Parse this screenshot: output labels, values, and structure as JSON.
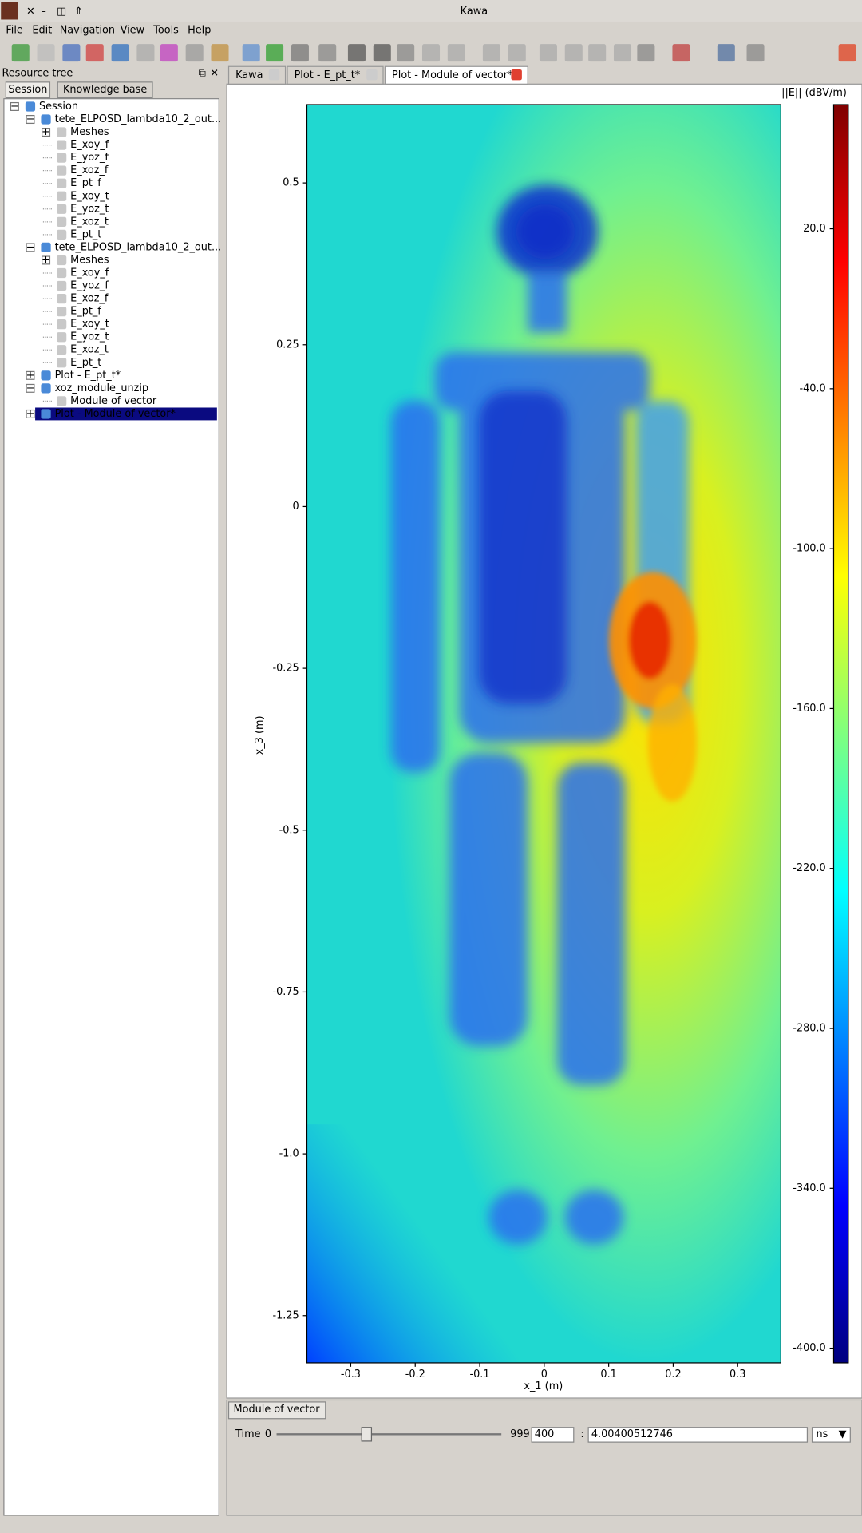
{
  "window": {
    "title": "Kawa"
  },
  "menu": [
    "File",
    "Edit",
    "Navigation",
    "View",
    "Tools",
    "Help"
  ],
  "resource_tree": {
    "title": "Resource tree",
    "tabs": [
      "Session",
      "Knowledge base"
    ],
    "root": {
      "label": "Session",
      "children": [
        {
          "label": "tete_ELPOSD_lambda10_2_out...",
          "children": [
            {
              "label": "Meshes",
              "expanded": false
            },
            {
              "label": "E_xoy_f"
            },
            {
              "label": "E_yoz_f"
            },
            {
              "label": "E_xoz_f"
            },
            {
              "label": "E_pt_f"
            },
            {
              "label": "E_xoy_t"
            },
            {
              "label": "E_yoz_t"
            },
            {
              "label": "E_xoz_t"
            },
            {
              "label": "E_pt_t"
            }
          ]
        },
        {
          "label": "tete_ELPOSD_lambda10_2_out...",
          "children": [
            {
              "label": "Meshes",
              "expanded": false
            },
            {
              "label": "E_xoy_f"
            },
            {
              "label": "E_yoz_f"
            },
            {
              "label": "E_xoz_f"
            },
            {
              "label": "E_pt_f"
            },
            {
              "label": "E_xoy_t"
            },
            {
              "label": "E_yoz_t"
            },
            {
              "label": "E_xoz_t"
            },
            {
              "label": "E_pt_t"
            }
          ]
        },
        {
          "label": "Plot - E_pt_t*",
          "expanded": false
        },
        {
          "label": "xoz_module_unzip",
          "children": [
            {
              "label": "Module of vector"
            }
          ]
        },
        {
          "label": "Plot - Module of vector*",
          "expanded": false,
          "selected": true
        }
      ]
    }
  },
  "tabs": {
    "items": [
      "Kawa",
      "Plot - E_pt_t*",
      "Plot - Module of vector*"
    ],
    "active": 2
  },
  "chart_data": {
    "type": "heatmap",
    "x_label": "x_1 (m)",
    "y_label": "x_3 (m)",
    "colorbar_label": "||E|| (dBV/m)",
    "xlim": [
      -0.368,
      0.367
    ],
    "ylim": [
      -1.323,
      0.621
    ],
    "clim": [
      -405.5,
      66.6
    ],
    "xticks": [
      -0.3,
      -0.2,
      -0.1,
      0,
      0.1,
      0.2,
      0.3
    ],
    "yticks": [
      0.5,
      0.25,
      0,
      -0.25,
      -0.5,
      -0.75,
      {
        "value": -1,
        "label": "-1.0"
      },
      -1.25
    ],
    "colorbar_ticks": [
      {
        "value": 20,
        "label": "20.0"
      },
      {
        "value": -40,
        "label": "-40.0"
      },
      {
        "value": -100,
        "label": "-100.0"
      },
      {
        "value": -160,
        "label": "-160.0"
      },
      {
        "value": -220,
        "label": "-220.0"
      },
      {
        "value": -280,
        "label": "-280.0"
      },
      {
        "value": -340,
        "label": "-340.0"
      },
      {
        "value": -400,
        "label": "-400.0"
      }
    ],
    "colormap": [
      "#00007f",
      "#0000ff",
      "#007fff",
      "#00ffff",
      "#7fff7f",
      "#ffff00",
      "#ff7f00",
      "#ff0000",
      "#7f0000"
    ]
  },
  "controls": {
    "tab": "Module of vector",
    "time_label": "Time",
    "slider": {
      "min": 0,
      "max": 999,
      "value": 400
    },
    "separator": ":",
    "time_value": "4.00400512746",
    "unit": "ns"
  }
}
